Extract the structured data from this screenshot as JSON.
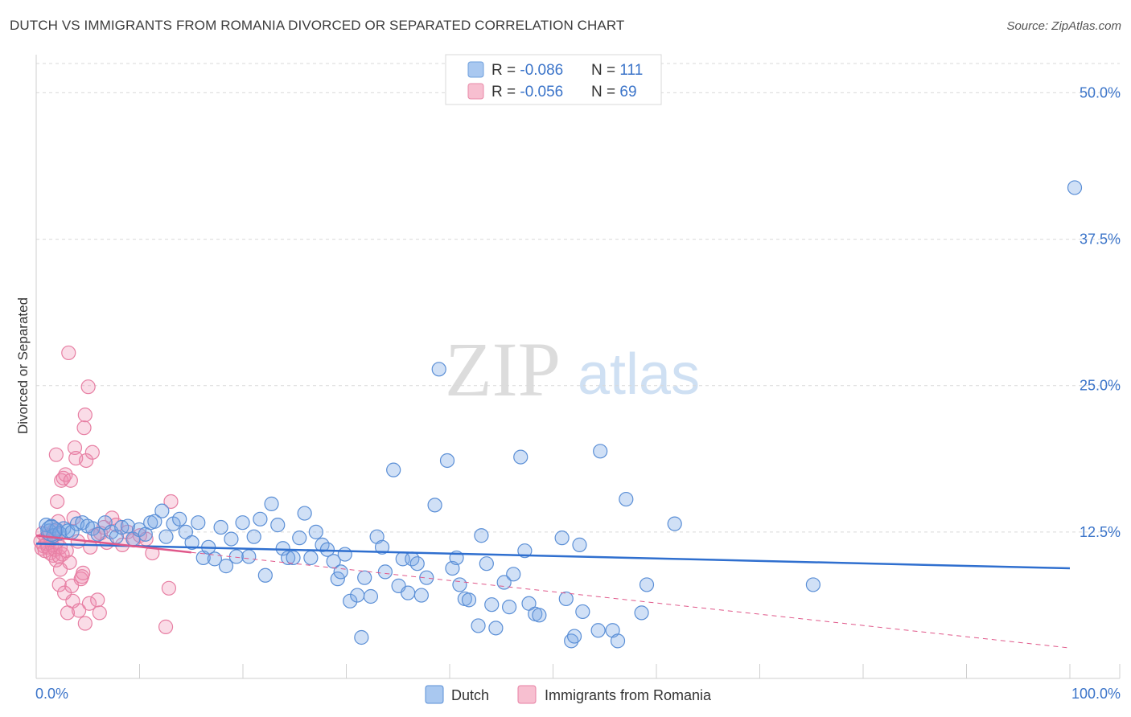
{
  "header": {
    "title": "DUTCH VS IMMIGRANTS FROM ROMANIA DIVORCED OR SEPARATED CORRELATION CHART",
    "source": "Source: ZipAtlas.com"
  },
  "watermark": {
    "part1": "ZIP",
    "part2": "atlas"
  },
  "legend_top": [
    {
      "r_label": "R = ",
      "r_value": "-0.086",
      "n_label": "N = ",
      "n_value": "111",
      "color": "#a9c8f0",
      "stroke": "#6e9fdc"
    },
    {
      "r_label": "R = ",
      "r_value": "-0.056",
      "n_label": "N = ",
      "n_value": "69",
      "color": "#f7bfd0",
      "stroke": "#e88aa8"
    }
  ],
  "legend_bottom": [
    {
      "label": "Dutch",
      "color": "#a9c8f0"
    },
    {
      "label": "Immigrants from Romania",
      "color": "#f7bfd0"
    }
  ],
  "colors": {
    "dutch_fill": "rgba(120,165,230,0.35)",
    "dutch_stroke": "#5b8fd6",
    "dutch_line": "#2f6fcf",
    "romania_fill": "rgba(240,140,175,0.30)",
    "romania_stroke": "#e77fa3",
    "romania_line": "#e0588a",
    "grid": "#d9d9d9",
    "tick_label": "#3b74c9"
  },
  "chart_data": {
    "type": "scatter",
    "title": "DUTCH VS IMMIGRANTS FROM ROMANIA DIVORCED OR SEPARATED CORRELATION CHART",
    "xlabel": "",
    "ylabel": "Divorced or Separated",
    "xlim": [
      0,
      100
    ],
    "ylim": [
      0,
      52.5
    ],
    "y_ticks": [
      12.5,
      25.0,
      37.5,
      50.0
    ],
    "y_tick_labels": [
      "12.5%",
      "25.0%",
      "37.5%",
      "50.0%"
    ],
    "x_tick_labels": [
      "0.0%",
      "100.0%"
    ],
    "grid": "horizontal dashed",
    "legend": "top-center and bottom-center",
    "series": [
      {
        "name": "Dutch",
        "r": -0.086,
        "n": 111,
        "trend": {
          "x": [
            0,
            100
          ],
          "y": [
            11.5,
            9.4
          ],
          "style": "solid"
        },
        "points": [
          [
            0.5,
            13.1
          ],
          [
            0.8,
            12.6
          ],
          [
            1.0,
            13.0
          ],
          [
            1.2,
            12.2
          ],
          [
            1.5,
            12.7
          ],
          [
            1.8,
            12.4
          ],
          [
            2.2,
            12.8
          ],
          [
            2.6,
            12.6
          ],
          [
            3.0,
            12.5
          ],
          [
            3.5,
            13.2
          ],
          [
            4.0,
            13.3
          ],
          [
            4.5,
            13.0
          ],
          [
            5.0,
            12.8
          ],
          [
            5.5,
            12.3
          ],
          [
            6.2,
            13.3
          ],
          [
            6.8,
            12.5
          ],
          [
            7.3,
            12.1
          ],
          [
            7.8,
            12.9
          ],
          [
            8.4,
            13.0
          ],
          [
            8.9,
            11.9
          ],
          [
            9.5,
            12.7
          ],
          [
            10.1,
            12.3
          ],
          [
            10.6,
            13.3
          ],
          [
            11.0,
            13.4
          ],
          [
            11.7,
            14.3
          ],
          [
            12.1,
            12.1
          ],
          [
            12.8,
            13.2
          ],
          [
            13.4,
            13.6
          ],
          [
            14.0,
            12.5
          ],
          [
            14.6,
            11.6
          ],
          [
            15.2,
            13.3
          ],
          [
            15.7,
            10.3
          ],
          [
            16.2,
            11.2
          ],
          [
            16.8,
            10.2
          ],
          [
            17.4,
            12.9
          ],
          [
            17.9,
            9.6
          ],
          [
            18.4,
            11.9
          ],
          [
            18.9,
            10.4
          ],
          [
            19.5,
            13.3
          ],
          [
            20.1,
            10.4
          ],
          [
            20.6,
            12.1
          ],
          [
            21.2,
            13.6
          ],
          [
            21.7,
            8.8
          ],
          [
            22.3,
            14.9
          ],
          [
            22.9,
            13.1
          ],
          [
            23.4,
            11.1
          ],
          [
            23.9,
            10.3
          ],
          [
            24.4,
            10.3
          ],
          [
            25.0,
            12.0
          ],
          [
            25.5,
            14.1
          ],
          [
            26.1,
            10.3
          ],
          [
            26.6,
            12.5
          ],
          [
            27.2,
            11.4
          ],
          [
            27.7,
            11.0
          ],
          [
            28.3,
            10.0
          ],
          [
            28.7,
            8.5
          ],
          [
            29.0,
            9.1
          ],
          [
            29.4,
            10.6
          ],
          [
            29.9,
            6.6
          ],
          [
            30.6,
            7.1
          ],
          [
            31.0,
            3.5
          ],
          [
            31.3,
            8.6
          ],
          [
            31.9,
            7.0
          ],
          [
            32.5,
            12.1
          ],
          [
            33.0,
            11.2
          ],
          [
            33.3,
            9.1
          ],
          [
            34.1,
            17.8
          ],
          [
            34.6,
            7.9
          ],
          [
            35.0,
            10.2
          ],
          [
            35.5,
            7.3
          ],
          [
            35.9,
            10.2
          ],
          [
            36.4,
            9.8
          ],
          [
            36.8,
            7.1
          ],
          [
            37.3,
            8.6
          ],
          [
            38.1,
            14.8
          ],
          [
            38.5,
            26.4
          ],
          [
            39.3,
            18.6
          ],
          [
            39.8,
            9.4
          ],
          [
            40.2,
            10.3
          ],
          [
            40.5,
            8.0
          ],
          [
            41.0,
            6.8
          ],
          [
            41.4,
            6.7
          ],
          [
            42.3,
            4.5
          ],
          [
            42.6,
            12.2
          ],
          [
            43.1,
            9.8
          ],
          [
            43.6,
            6.3
          ],
          [
            44.0,
            4.3
          ],
          [
            44.8,
            8.2
          ],
          [
            45.3,
            6.1
          ],
          [
            45.7,
            8.9
          ],
          [
            46.4,
            18.9
          ],
          [
            46.8,
            10.9
          ],
          [
            47.2,
            6.4
          ],
          [
            47.8,
            5.5
          ],
          [
            48.2,
            5.4
          ],
          [
            50.4,
            12.0
          ],
          [
            50.8,
            6.8
          ],
          [
            51.3,
            3.2
          ],
          [
            51.6,
            3.6
          ],
          [
            52.1,
            11.4
          ],
          [
            52.4,
            5.7
          ],
          [
            53.9,
            4.1
          ],
          [
            54.1,
            19.4
          ],
          [
            55.3,
            4.1
          ],
          [
            55.8,
            3.2
          ],
          [
            56.6,
            15.3
          ],
          [
            58.1,
            5.6
          ],
          [
            58.6,
            8.0
          ],
          [
            61.3,
            13.2
          ],
          [
            74.7,
            8.0
          ],
          [
            100.0,
            41.9
          ]
        ]
      },
      {
        "name": "Immigrants from Romania",
        "r": -0.056,
        "n": 69,
        "trend": {
          "x": [
            0,
            100
          ],
          "y": [
            12.2,
            2.6
          ],
          "style": "solid to x=15, dashed beyond"
        },
        "points": [
          [
            0.2,
            11.7
          ],
          [
            0.3,
            11.1
          ],
          [
            0.4,
            12.4
          ],
          [
            0.5,
            11.3
          ],
          [
            0.6,
            10.9
          ],
          [
            0.7,
            12.0
          ],
          [
            0.8,
            11.5
          ],
          [
            0.9,
            11.2
          ],
          [
            1.0,
            12.2
          ],
          [
            1.1,
            10.7
          ],
          [
            1.2,
            11.8
          ],
          [
            1.3,
            11.4
          ],
          [
            1.4,
            10.5
          ],
          [
            1.5,
            12.6
          ],
          [
            1.6,
            11.0
          ],
          [
            1.7,
            10.1
          ],
          [
            1.8,
            11.7
          ],
          [
            1.9,
            13.4
          ],
          [
            2.0,
            10.4
          ],
          [
            2.1,
            11.2
          ],
          [
            1.7,
            19.1
          ],
          [
            1.8,
            15.1
          ],
          [
            2.0,
            8.0
          ],
          [
            2.1,
            9.3
          ],
          [
            2.2,
            16.9
          ],
          [
            2.3,
            10.6
          ],
          [
            2.4,
            17.1
          ],
          [
            2.5,
            7.3
          ],
          [
            2.6,
            17.4
          ],
          [
            2.7,
            10.9
          ],
          [
            2.8,
            5.6
          ],
          [
            2.9,
            27.8
          ],
          [
            3.0,
            9.9
          ],
          [
            3.1,
            16.9
          ],
          [
            3.2,
            7.9
          ],
          [
            3.3,
            6.6
          ],
          [
            3.4,
            13.7
          ],
          [
            3.5,
            19.7
          ],
          [
            3.6,
            18.8
          ],
          [
            3.8,
            11.7
          ],
          [
            3.9,
            5.8
          ],
          [
            4.1,
            8.5
          ],
          [
            4.2,
            8.7
          ],
          [
            4.3,
            9.0
          ],
          [
            4.4,
            21.4
          ],
          [
            4.5,
            22.5
          ],
          [
            4.5,
            4.7
          ],
          [
            4.6,
            18.6
          ],
          [
            4.8,
            24.9
          ],
          [
            4.9,
            6.4
          ],
          [
            5.0,
            11.2
          ],
          [
            5.2,
            19.3
          ],
          [
            5.4,
            12.2
          ],
          [
            5.7,
            6.7
          ],
          [
            5.9,
            5.6
          ],
          [
            6.0,
            12.4
          ],
          [
            6.3,
            12.9
          ],
          [
            6.6,
            11.6
          ],
          [
            7.1,
            13.7
          ],
          [
            7.5,
            13.1
          ],
          [
            8.1,
            11.4
          ],
          [
            8.6,
            12.5
          ],
          [
            9.2,
            11.8
          ],
          [
            9.8,
            12.2
          ],
          [
            10.4,
            11.9
          ],
          [
            11.0,
            10.7
          ],
          [
            12.3,
            4.4
          ],
          [
            12.6,
            7.7
          ],
          [
            12.8,
            15.1
          ]
        ]
      }
    ]
  }
}
